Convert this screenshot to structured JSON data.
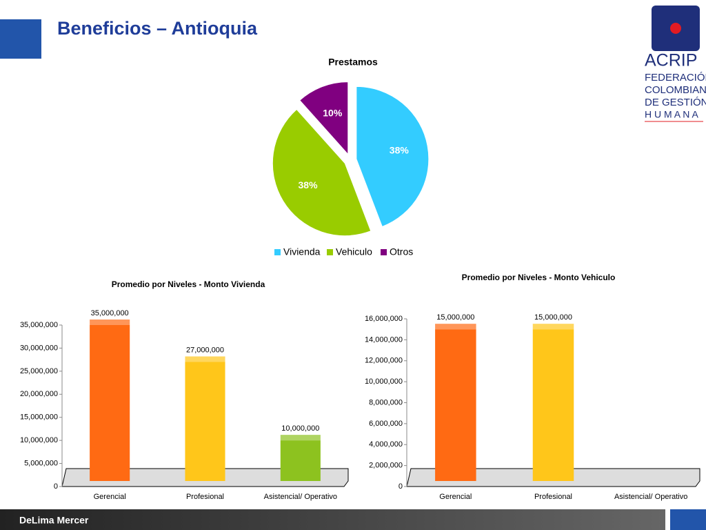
{
  "header": {
    "title": "Beneficios – Antioquia",
    "footer": "DeLima Mercer",
    "logo": [
      "ACRIP",
      "FEDERACIÓN",
      "COLOMBIANA",
      "DE GESTIÓN",
      "H U M A N A"
    ]
  },
  "chart_data": [
    {
      "type": "pie",
      "title": "Prestamos",
      "categories": [
        "Vivienda",
        "Vehiculo",
        "Otros"
      ],
      "values": [
        38,
        38,
        10
      ],
      "value_labels": [
        "38%",
        "38%",
        "10%"
      ],
      "colors": [
        "#33ccff",
        "#99cc00",
        "#800080"
      ],
      "legend": "bottom"
    },
    {
      "type": "bar",
      "title": "Promedio por Niveles - Monto Vivienda",
      "categories": [
        "Gerencial",
        "Profesional",
        "Asistencial/ Operativo"
      ],
      "values": [
        35000000,
        27000000,
        10000000
      ],
      "value_labels": [
        "35,000,000",
        "27,000,000",
        "10,000,000"
      ],
      "colors": [
        "#ff6a13",
        "#ffc61a",
        "#8dc21f"
      ],
      "ylim": [
        0,
        35000000
      ],
      "yticks": [
        0,
        {
          "value": 5000000,
          "label": "5,000,000"
        },
        {
          "value": 10000000,
          "label": "10,000,000"
        },
        {
          "value": 15000000,
          "label": "15,000,000"
        },
        {
          "value": 20000000,
          "label": "20,000,000"
        },
        {
          "value": 25000000,
          "label": "25,000,000"
        },
        {
          "value": 30000000,
          "label": "30,000,000"
        },
        {
          "value": 35000000,
          "label": "35,000,000"
        }
      ]
    },
    {
      "type": "bar",
      "title": "Promedio por Niveles - Monto Vehiculo",
      "categories": [
        "Gerencial",
        "Profesional",
        "Asistencial/ Operativo"
      ],
      "values": [
        15000000,
        15000000,
        null
      ],
      "value_labels": [
        "15,000,000",
        "15,000,000",
        null
      ],
      "colors": [
        "#ff6a13",
        "#ffc61a",
        "#8dc21f"
      ],
      "ylim": [
        0,
        16000000
      ],
      "yticks": [
        0,
        {
          "value": 2000000,
          "label": "2,000,000"
        },
        {
          "value": 4000000,
          "label": "4,000,000"
        },
        {
          "value": 6000000,
          "label": "6,000,000"
        },
        {
          "value": 8000000,
          "label": "8,000,000"
        },
        {
          "value": 10000000,
          "label": "10,000,000"
        },
        {
          "value": 12000000,
          "label": "12,000,000"
        },
        {
          "value": 14000000,
          "label": "14,000,000"
        },
        {
          "value": 16000000,
          "label": "16,000,000"
        }
      ]
    }
  ]
}
